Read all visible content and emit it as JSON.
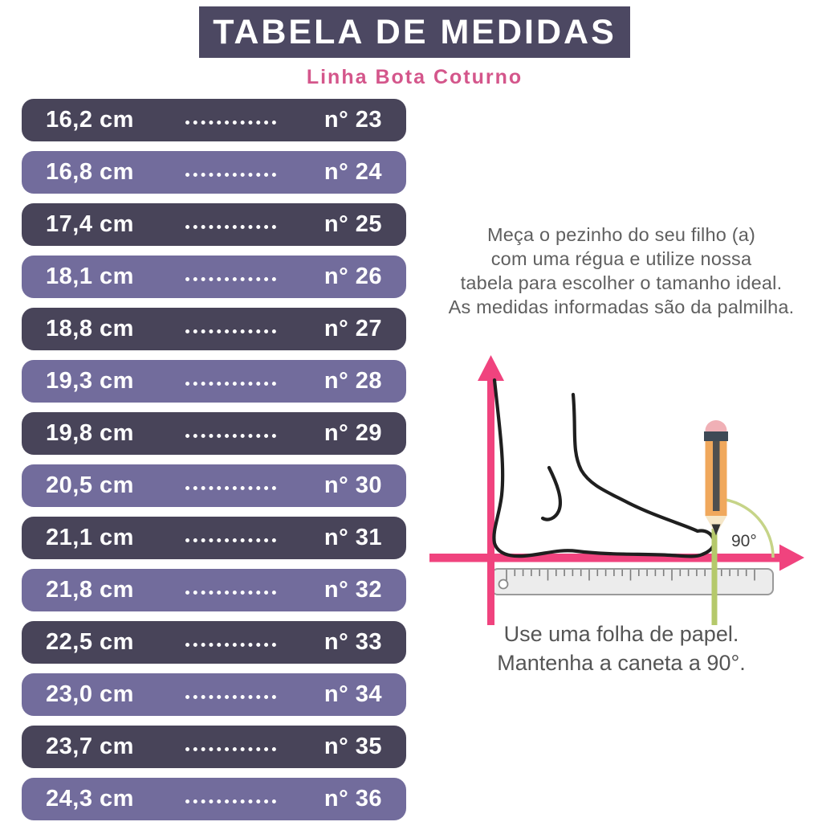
{
  "header": {
    "title": "TABELA DE MEDIDAS",
    "subtitle": "Linha Bota Coturno"
  },
  "size_table": {
    "rows": [
      {
        "cm": "16,2 cm",
        "size": "n° 23",
        "shade": "dark"
      },
      {
        "cm": "16,8 cm",
        "size": "n° 24",
        "shade": "light"
      },
      {
        "cm": "17,4 cm",
        "size": "n° 25",
        "shade": "dark"
      },
      {
        "cm": "18,1 cm",
        "size": "n° 26",
        "shade": "light"
      },
      {
        "cm": "18,8 cm",
        "size": "n° 27",
        "shade": "dark"
      },
      {
        "cm": "19,3 cm",
        "size": "n° 28",
        "shade": "light"
      },
      {
        "cm": "19,8 cm",
        "size": "n° 29",
        "shade": "dark"
      },
      {
        "cm": "20,5 cm",
        "size": "n° 30",
        "shade": "light"
      },
      {
        "cm": "21,1 cm",
        "size": "n° 31",
        "shade": "dark"
      },
      {
        "cm": "21,8 cm",
        "size": "n° 32",
        "shade": "light"
      },
      {
        "cm": "22,5 cm",
        "size": "n° 33",
        "shade": "dark"
      },
      {
        "cm": "23,0 cm",
        "size": "n° 34",
        "shade": "light"
      },
      {
        "cm": "23,7 cm",
        "size": "n° 35",
        "shade": "dark"
      },
      {
        "cm": "24,3 cm",
        "size": "n° 36",
        "shade": "light"
      }
    ]
  },
  "instructions": {
    "lines": [
      "Meça o pezinho do seu filho (a)",
      "com uma régua e utilize nossa",
      "tabela para escolher o tamanho ideal.",
      "As medidas informadas são da palmilha."
    ]
  },
  "diagram": {
    "angle_label": "90°"
  },
  "footer_note": {
    "lines": [
      "Use uma folha de papel.",
      "Mantenha a caneta a 90°."
    ]
  },
  "colors": {
    "title-bg": "#4c4862",
    "row-dark": "#484459",
    "row-light": "#726c9c",
    "row-text": "#ffffff",
    "subtitle-pink": "#d4568b",
    "axis-pink": "#f0437e",
    "line-green": "#b5c96b",
    "arc-green": "#c6d488",
    "pencil-orange": "#f0a85c",
    "pencil-eraser": "#f0b0b6",
    "pencil-dark": "#3e4a56",
    "pencil-wood": "#f6e7c8",
    "ruler-fill": "#ececec",
    "ruler-border": "#9a9a9a",
    "text-gray": "#5f5f5f",
    "note-gray": "#555555",
    "foot-stroke": "#1f1f1f"
  }
}
